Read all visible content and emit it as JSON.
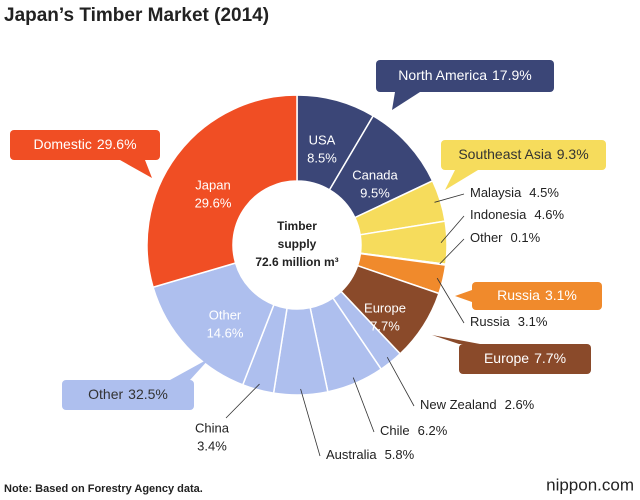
{
  "chart_data": {
    "type": "donut",
    "title": "Japan’s Timber Market (2014)",
    "center_label": [
      "Timber",
      "supply",
      "72.6 million m³"
    ],
    "segments": [
      {
        "name": "USA",
        "value": 8.5,
        "value_label": "8.5%",
        "color": "#3b4677"
      },
      {
        "name": "Canada",
        "value": 9.5,
        "value_label": "9.5%",
        "color": "#3b4677"
      },
      {
        "name": "Malaysia",
        "value": 4.5,
        "value_label": "4.5%",
        "color": "#f6dc5c"
      },
      {
        "name": "Indonesia",
        "value": 4.6,
        "value_label": "4.6%",
        "color": "#f6dc5c"
      },
      {
        "name": "Other",
        "value": 0.1,
        "value_label": "0.1%",
        "color": "#f6dc5c"
      },
      {
        "name": "Russia",
        "value": 3.1,
        "value_label": "3.1%",
        "color": "#f08a2c"
      },
      {
        "name": "Europe",
        "value": 7.7,
        "value_label": "7.7%",
        "color": "#8a4a2a"
      },
      {
        "name": "New Zealand",
        "value": 2.6,
        "value_label": "2.6%",
        "color": "#aebfee"
      },
      {
        "name": "Chile",
        "value": 6.2,
        "value_label": "6.2%",
        "color": "#aebfee"
      },
      {
        "name": "Australia",
        "value": 5.8,
        "value_label": "5.8%",
        "color": "#aebfee"
      },
      {
        "name": "China",
        "value": 3.4,
        "value_label": "3.4%",
        "color": "#aebfee"
      },
      {
        "name": "Other",
        "value": 14.6,
        "value_label": "14.6%",
        "color": "#aebfee"
      },
      {
        "name": "Japan",
        "value": 29.6,
        "value_label": "29.6%",
        "color": "#f04e24"
      }
    ],
    "groups": [
      {
        "name": "North America",
        "value": 17.9,
        "value_label": "17.9%",
        "color": "#3b4677"
      },
      {
        "name": "Southeast Asia",
        "value": 9.3,
        "value_label": "9.3%",
        "color": "#f6dc5c"
      },
      {
        "name": "Russia",
        "value": 3.1,
        "value_label": "3.1%",
        "color": "#f08a2c"
      },
      {
        "name": "Europe",
        "value": 7.7,
        "value_label": "7.7%",
        "color": "#8a4a2a"
      },
      {
        "name": "Domestic",
        "value": 29.6,
        "value_label": "29.6%",
        "color": "#f04e24"
      },
      {
        "name": "Other",
        "value": 32.5,
        "value_label": "32.5%",
        "color": "#aebfee"
      }
    ],
    "note": "Note: Based on Forestry Agency data.",
    "source": "nippon.com"
  }
}
